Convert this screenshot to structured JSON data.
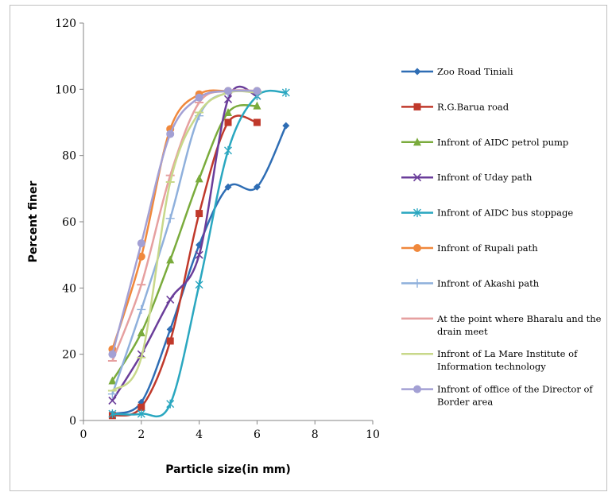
{
  "chart_data": {
    "type": "line",
    "title": "",
    "xlabel": "Particle size(in mm)",
    "ylabel": "Percent finer",
    "xlim": [
      0,
      10
    ],
    "ylim": [
      0,
      120
    ],
    "xticks": [
      0,
      2,
      4,
      6,
      8,
      10
    ],
    "yticks": [
      0,
      20,
      40,
      60,
      80,
      100,
      120
    ],
    "grid": false,
    "legend": "right",
    "series": [
      {
        "name": "Zoo Road Tiniali",
        "color": "#2e6db4",
        "marker": "diamond",
        "x": [
          1,
          2,
          3,
          4,
          5,
          6,
          7
        ],
        "y": [
          2,
          5.5,
          27.5,
          53,
          70.5,
          70.5,
          89
        ]
      },
      {
        "name": "R.G.Barua road",
        "color": "#c0392b",
        "marker": "square",
        "x": [
          1,
          2,
          3,
          4,
          5,
          6
        ],
        "y": [
          1.5,
          4,
          24,
          62.5,
          90,
          90
        ]
      },
      {
        "name": "Infront of AIDC petrol pump",
        "color": "#7aab3c",
        "marker": "triangle",
        "x": [
          1,
          2,
          3,
          4,
          5,
          6
        ],
        "y": [
          12,
          26.5,
          48.5,
          73,
          93,
          95
        ]
      },
      {
        "name": "Infront of Uday path",
        "color": "#6a3d9a",
        "marker": "x",
        "x": [
          1,
          2,
          3,
          4,
          5,
          6
        ],
        "y": [
          6,
          20,
          36.5,
          50,
          97,
          98
        ]
      },
      {
        "name": "Infront of AIDC bus stoppage",
        "color": "#2aa7c0",
        "marker": "star",
        "x": [
          1,
          2,
          3,
          4,
          5,
          6,
          7
        ],
        "y": [
          2,
          2,
          5,
          41,
          81.5,
          98,
          99
        ]
      },
      {
        "name": "Infront of Rupali path",
        "color": "#f0883c",
        "marker": "circle",
        "x": [
          1,
          2,
          3,
          4,
          5,
          6
        ],
        "y": [
          21.5,
          49.5,
          88,
          98.5,
          99.5,
          99.5
        ]
      },
      {
        "name": "Infront of Akashi path",
        "color": "#8fb0dc",
        "marker": "plus",
        "x": [
          1,
          2,
          3,
          4,
          5,
          6
        ],
        "y": [
          8,
          33.5,
          61,
          92,
          99,
          99
        ]
      },
      {
        "name": "At the point where Bharalu and the drain meet",
        "color": "#e6a0a0",
        "marker": "dash",
        "x": [
          1,
          2,
          3,
          4,
          5,
          6
        ],
        "y": [
          18,
          41,
          74,
          96,
          99.5,
          99.5
        ]
      },
      {
        "name": "Infront of La Mare Institute of Information technology",
        "color": "#c8d88a",
        "marker": "dash",
        "x": [
          1,
          2,
          3,
          4,
          5,
          6
        ],
        "y": [
          9,
          19,
          72,
          93,
          99,
          99
        ]
      },
      {
        "name": "Infront of office of the Director of Border area",
        "color": "#a3a0d4",
        "marker": "circle",
        "x": [
          1,
          2,
          3,
          4,
          5,
          6
        ],
        "y": [
          20,
          53.5,
          86.5,
          97.5,
          99.5,
          99.5
        ]
      }
    ]
  }
}
